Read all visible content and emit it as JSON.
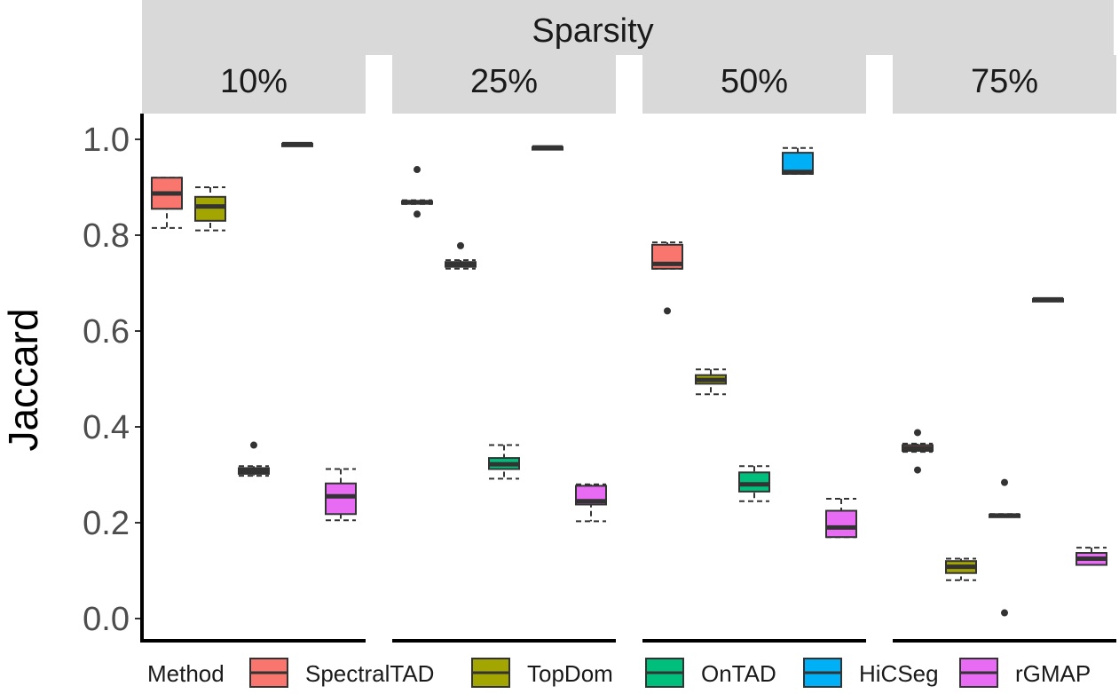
{
  "chart_data": {
    "type": "boxplot",
    "facet_title": "Sparsity",
    "ylabel": "Jaccard",
    "xlabel": "",
    "ylim": [
      0.0,
      1.0
    ],
    "y_ticks": [
      "0.0",
      "0.2",
      "0.4",
      "0.6",
      "0.8",
      "1.0"
    ],
    "legend_title": "Method",
    "legend_position": "bottom",
    "methods": [
      {
        "name": "SpectralTAD",
        "color": "#F8766D"
      },
      {
        "name": "TopDom",
        "color": "#A3A500"
      },
      {
        "name": "OnTAD",
        "color": "#00BF7D"
      },
      {
        "name": "HiCSeg",
        "color": "#00B0F6"
      },
      {
        "name": "rGMAP",
        "color": "#E76BF3"
      }
    ],
    "panels": [
      {
        "label": "10%",
        "boxes": [
          {
            "method": "SpectralTAD",
            "low": 0.815,
            "q1": 0.855,
            "median": 0.887,
            "q3": 0.92,
            "high": 0.92,
            "outliers": []
          },
          {
            "method": "TopDom",
            "low": 0.81,
            "q1": 0.83,
            "median": 0.86,
            "q3": 0.88,
            "high": 0.9,
            "outliers": []
          },
          {
            "method": "OnTAD",
            "low": 0.298,
            "q1": 0.302,
            "median": 0.308,
            "q3": 0.314,
            "high": 0.318,
            "outliers": [
              0.362
            ]
          },
          {
            "method": "HiCSeg",
            "low": 0.988,
            "q1": 0.989,
            "median": 0.99,
            "q3": 0.991,
            "high": 0.992,
            "outliers": []
          },
          {
            "method": "rGMAP",
            "low": 0.205,
            "q1": 0.218,
            "median": 0.255,
            "q3": 0.282,
            "high": 0.312,
            "outliers": []
          }
        ]
      },
      {
        "label": "25%",
        "boxes": [
          {
            "method": "SpectralTAD",
            "low": 0.865,
            "q1": 0.866,
            "median": 0.869,
            "q3": 0.871,
            "high": 0.873,
            "outliers": [
              0.937,
              0.844
            ]
          },
          {
            "method": "TopDom",
            "low": 0.73,
            "q1": 0.734,
            "median": 0.738,
            "q3": 0.744,
            "high": 0.748,
            "outliers": [
              0.778
            ]
          },
          {
            "method": "OnTAD",
            "low": 0.292,
            "q1": 0.312,
            "median": 0.322,
            "q3": 0.335,
            "high": 0.362,
            "outliers": []
          },
          {
            "method": "HiCSeg",
            "low": 0.981,
            "q1": 0.982,
            "median": 0.983,
            "q3": 0.984,
            "high": 0.985,
            "outliers": []
          },
          {
            "method": "rGMAP",
            "low": 0.203,
            "q1": 0.238,
            "median": 0.245,
            "q3": 0.277,
            "high": 0.28,
            "outliers": []
          }
        ]
      },
      {
        "label": "50%",
        "boxes": [
          {
            "method": "SpectralTAD",
            "low": 0.73,
            "q1": 0.73,
            "median": 0.74,
            "q3": 0.78,
            "high": 0.785,
            "outliers": [
              0.642
            ]
          },
          {
            "method": "TopDom",
            "low": 0.468,
            "q1": 0.49,
            "median": 0.498,
            "q3": 0.508,
            "high": 0.52,
            "outliers": []
          },
          {
            "method": "OnTAD",
            "low": 0.245,
            "q1": 0.265,
            "median": 0.28,
            "q3": 0.305,
            "high": 0.318,
            "outliers": []
          },
          {
            "method": "HiCSeg",
            "low": 0.928,
            "q1": 0.928,
            "median": 0.932,
            "q3": 0.972,
            "high": 0.982,
            "outliers": []
          },
          {
            "method": "rGMAP",
            "low": 0.17,
            "q1": 0.17,
            "median": 0.19,
            "q3": 0.225,
            "high": 0.25,
            "outliers": []
          }
        ]
      },
      {
        "label": "75%",
        "boxes": [
          {
            "method": "SpectralTAD",
            "low": 0.348,
            "q1": 0.35,
            "median": 0.355,
            "q3": 0.362,
            "high": 0.365,
            "outliers": [
              0.388,
              0.31
            ]
          },
          {
            "method": "TopDom",
            "low": 0.08,
            "q1": 0.095,
            "median": 0.108,
            "q3": 0.12,
            "high": 0.125,
            "outliers": []
          },
          {
            "method": "OnTAD",
            "low": 0.212,
            "q1": 0.213,
            "median": 0.215,
            "q3": 0.217,
            "high": 0.218,
            "outliers": [
              0.284,
              0.012
            ]
          },
          {
            "method": "HiCSeg",
            "low": 0.664,
            "q1": 0.665,
            "median": 0.666,
            "q3": 0.667,
            "high": 0.668,
            "outliers": []
          },
          {
            "method": "rGMAP",
            "low": 0.112,
            "q1": 0.112,
            "median": 0.125,
            "q3": 0.137,
            "high": 0.148,
            "outliers": []
          }
        ]
      }
    ]
  }
}
